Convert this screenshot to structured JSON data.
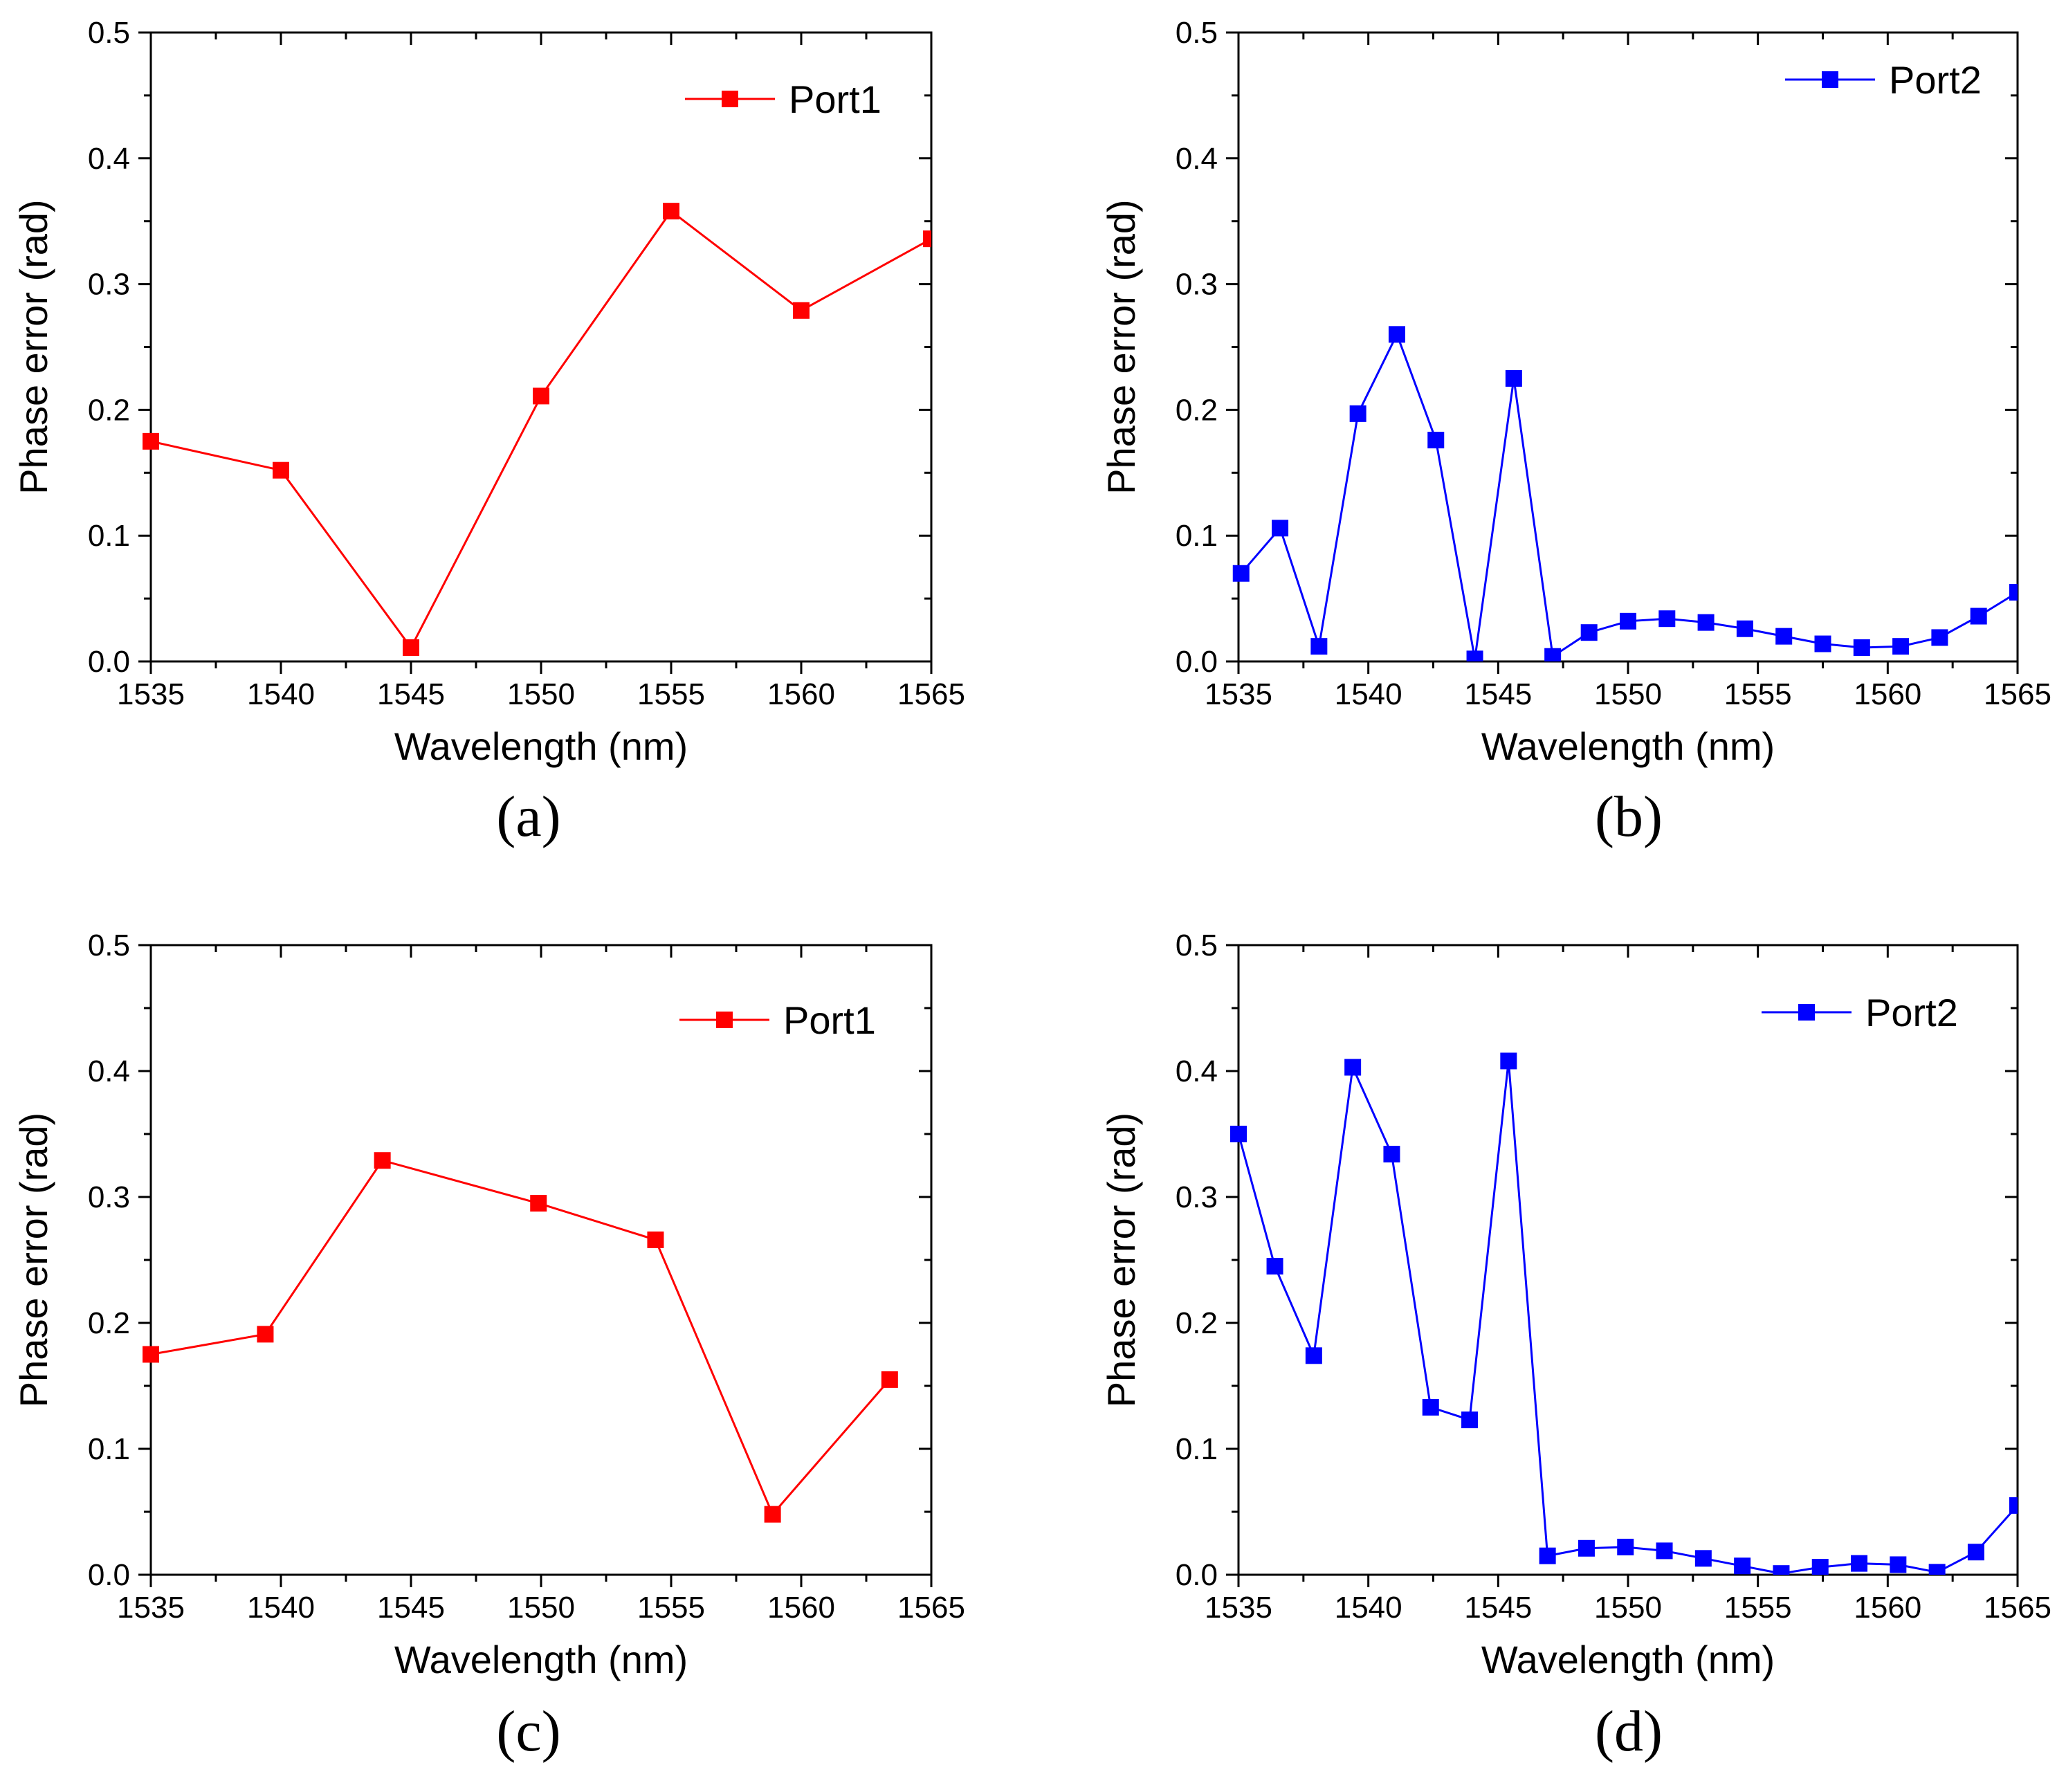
{
  "chart_data": [
    {
      "panel": "(a)",
      "type": "line",
      "title": "",
      "xlabel": "Wavelength (nm)",
      "ylabel": "Phase error (rad)",
      "xlim": [
        1535,
        1565
      ],
      "ylim": [
        0,
        0.5
      ],
      "xticks": [
        "1535",
        "1540",
        "1545",
        "1550",
        "1555",
        "1560",
        "1565"
      ],
      "yticks": [
        "0.0",
        "0.1",
        "0.2",
        "0.3",
        "0.4",
        "0.5"
      ],
      "grid": false,
      "legend_position": "top-right",
      "series": [
        {
          "name": "Port1",
          "color": "#ff0000",
          "marker": "square",
          "x": [
            1535,
            1540,
            1545,
            1550,
            1555,
            1560,
            1565
          ],
          "y": [
            0.175,
            0.152,
            0.011,
            0.211,
            0.358,
            0.279,
            0.336
          ]
        }
      ]
    },
    {
      "panel": "(b)",
      "type": "line",
      "title": "",
      "xlabel": "Wavelength (nm)",
      "ylabel": "Phase error (rad)",
      "xlim": [
        1535,
        1565
      ],
      "ylim": [
        0,
        0.5
      ],
      "xticks": [
        "1535",
        "1540",
        "1545",
        "1550",
        "1555",
        "1560",
        "1565"
      ],
      "yticks": [
        "0.0",
        "0.1",
        "0.2",
        "0.3",
        "0.4",
        "0.5"
      ],
      "grid": false,
      "legend_position": "top-right",
      "series": [
        {
          "name": "Port2",
          "color": "#0000ff",
          "marker": "square",
          "x": [
            1535.1,
            1536.6,
            1538.1,
            1539.6,
            1541.1,
            1542.6,
            1544.1,
            1545.6,
            1547.1,
            1548.5,
            1550.0,
            1551.5,
            1553.0,
            1554.5,
            1556.0,
            1557.5,
            1559.0,
            1560.5,
            1562.0,
            1563.5,
            1565.0
          ],
          "y": [
            0.07,
            0.106,
            0.012,
            0.197,
            0.26,
            0.176,
            0.002,
            0.225,
            0.004,
            0.023,
            0.032,
            0.034,
            0.031,
            0.026,
            0.02,
            0.014,
            0.011,
            0.012,
            0.019,
            0.036,
            0.055
          ]
        }
      ]
    },
    {
      "panel": "(c)",
      "type": "line",
      "title": "",
      "xlabel": "Wavelength (nm)",
      "ylabel": "Phase error (rad)",
      "xlim": [
        1535,
        1565
      ],
      "ylim": [
        0,
        0.5
      ],
      "xticks": [
        "1535",
        "1540",
        "1545",
        "1550",
        "1555",
        "1560",
        "1565"
      ],
      "yticks": [
        "0.0",
        "0.1",
        "0.2",
        "0.3",
        "0.4",
        "0.5"
      ],
      "grid": false,
      "legend_position": "top-right",
      "series": [
        {
          "name": "Port1",
          "color": "#ff0000",
          "marker": "square",
          "x": [
            1535.0,
            1539.4,
            1543.9,
            1549.9,
            1554.4,
            1558.9,
            1563.4
          ],
          "y": [
            0.175,
            0.191,
            0.329,
            0.295,
            0.266,
            0.048,
            0.155
          ]
        }
      ]
    },
    {
      "panel": "(d)",
      "type": "line",
      "title": "",
      "xlabel": "Wavelength (nm)",
      "ylabel": "Phase error (rad)",
      "xlim": [
        1535,
        1565
      ],
      "ylim": [
        0,
        0.5
      ],
      "xticks": [
        "1535",
        "1540",
        "1545",
        "1550",
        "1555",
        "1560",
        "1565"
      ],
      "yticks": [
        "0.0",
        "0.1",
        "0.2",
        "0.3",
        "0.4",
        "0.5"
      ],
      "grid": false,
      "legend_position": "top-right",
      "series": [
        {
          "name": "Port2",
          "color": "#0000ff",
          "marker": "square",
          "x": [
            1535.0,
            1536.4,
            1537.9,
            1539.4,
            1540.9,
            1542.4,
            1543.9,
            1545.4,
            1546.9,
            1548.4,
            1549.9,
            1551.4,
            1552.9,
            1554.4,
            1555.9,
            1557.4,
            1558.9,
            1560.4,
            1561.9,
            1563.4,
            1565.0
          ],
          "y": [
            0.35,
            0.245,
            0.174,
            0.403,
            0.334,
            0.133,
            0.123,
            0.408,
            0.015,
            0.021,
            0.022,
            0.019,
            0.013,
            0.007,
            0.001,
            0.006,
            0.009,
            0.008,
            0.002,
            0.018,
            0.055
          ]
        }
      ]
    }
  ]
}
